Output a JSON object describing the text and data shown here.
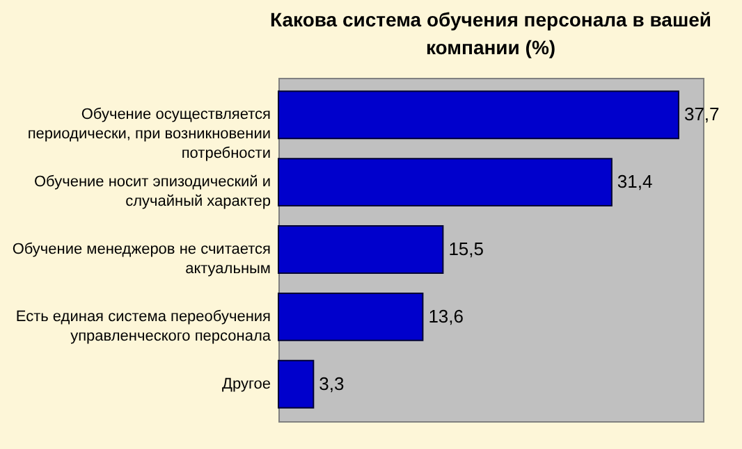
{
  "chart_data": {
    "type": "bar",
    "orientation": "horizontal",
    "title": "Какова система обучения персонала в вашей компании (%)",
    "categories": [
      "Обучение осуществляется периодически, при возникновении потребности",
      "Обучение носит эпизодический и случайный характер",
      "Обучение менеджеров не считается актуальным",
      "Есть единая система переобучения управленческого персонала",
      "Другое"
    ],
    "values": [
      37.7,
      31.4,
      15.5,
      13.6,
      3.3
    ],
    "value_labels": [
      "37,7",
      "31,4",
      "15,5",
      "13,6",
      "3,3"
    ],
    "color": "#0000cc",
    "grid": false
  }
}
